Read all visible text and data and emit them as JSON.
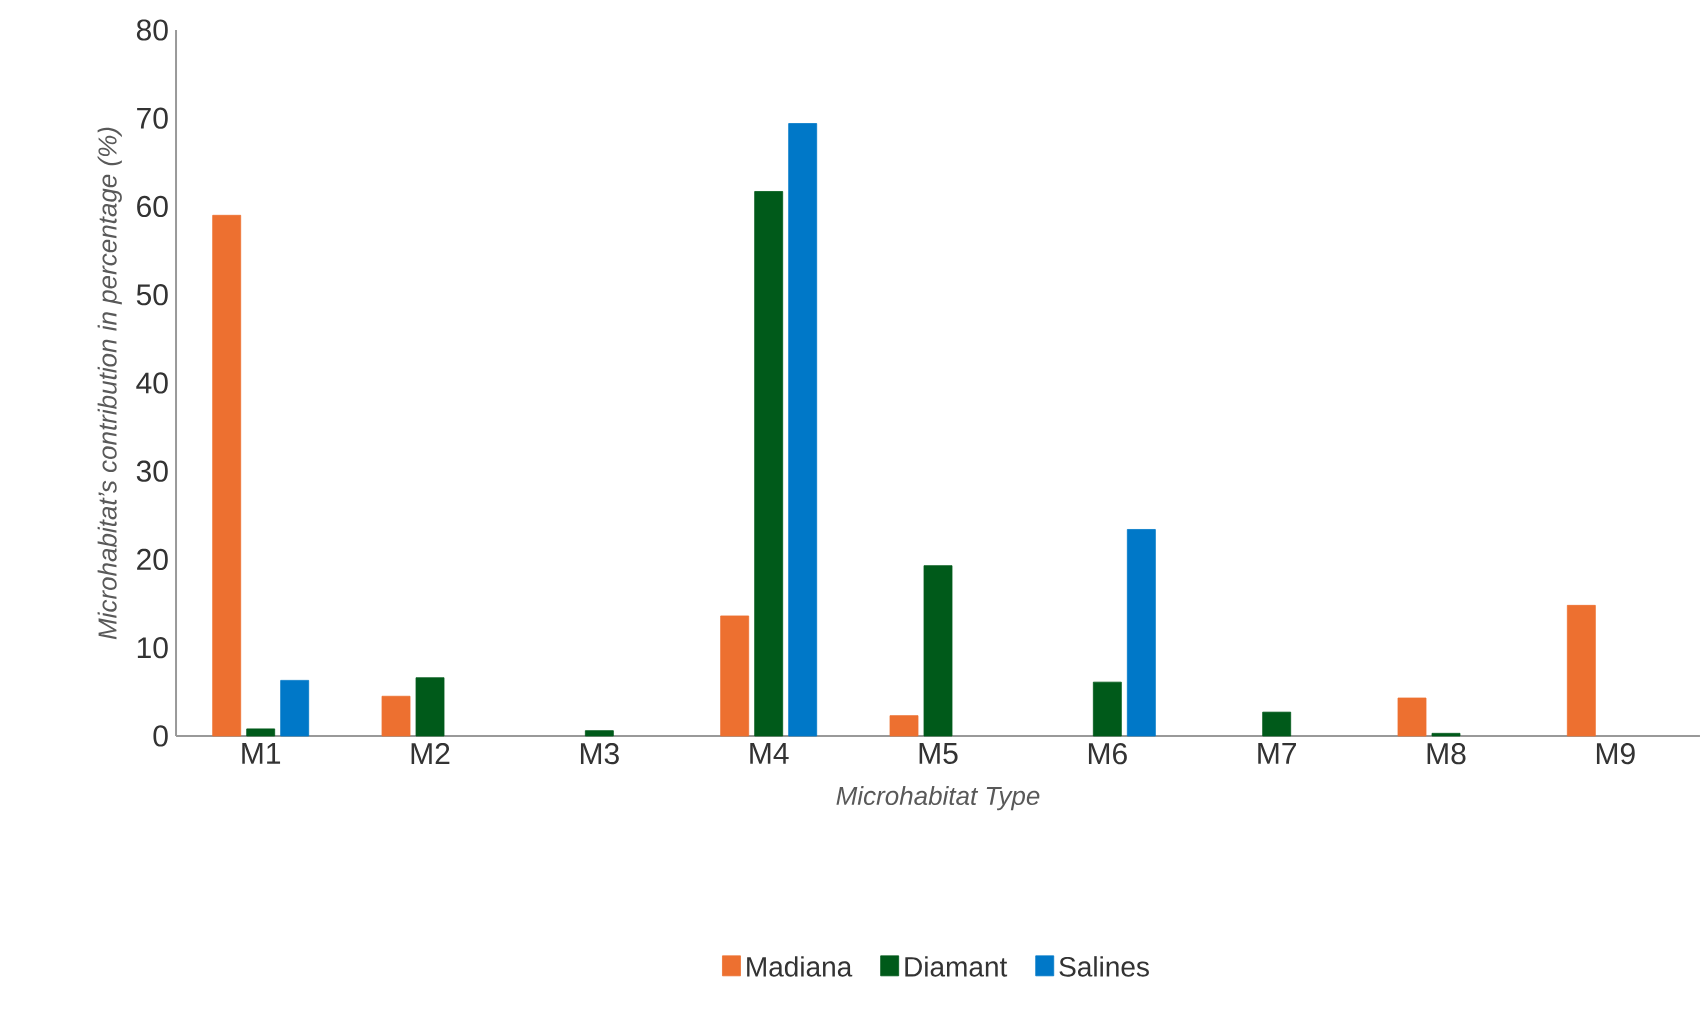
{
  "chart_data": {
    "type": "bar",
    "xlabel": "Microhabitat Type",
    "ylabel": "Microhabitat’s contribution in percentage (%)",
    "categories": [
      "M1",
      "M2",
      "M3",
      "M4",
      "M5",
      "M6",
      "M7",
      "M8",
      "M9"
    ],
    "series": [
      {
        "name": "Madiana",
        "color": "#ed7030",
        "values": [
          59,
          4.5,
          null,
          13.6,
          2.3,
          null,
          null,
          4.3,
          14.8
        ]
      },
      {
        "name": "Diamant",
        "color": "#005a1a",
        "values": [
          0.8,
          6.6,
          0.6,
          61.7,
          19.3,
          6.1,
          2.7,
          0.3,
          null
        ]
      },
      {
        "name": "Salines",
        "color": "#0078c8",
        "values": [
          6.3,
          null,
          null,
          69.4,
          null,
          23.4,
          null,
          null,
          null
        ]
      }
    ],
    "ylim": [
      0,
      80
    ],
    "yticks": [
      0,
      10,
      20,
      30,
      40,
      50,
      60,
      70,
      80
    ],
    "grid": false,
    "legend": "bottom"
  }
}
